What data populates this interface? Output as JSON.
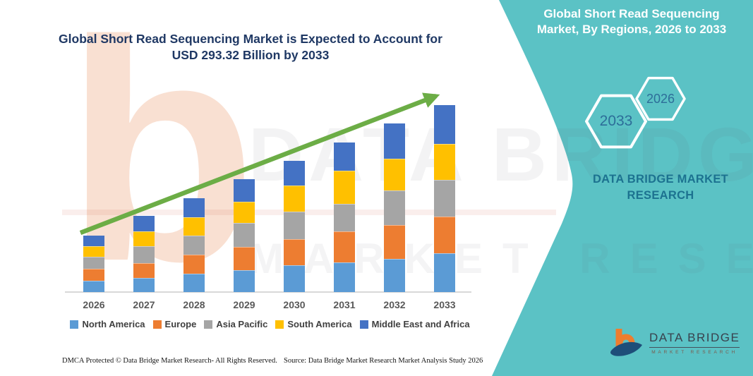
{
  "title": {
    "line1": "Global Short Read Sequencing Market is Expected to Account for",
    "line2": "USD 293.32 Billion by 2033"
  },
  "side_panel": {
    "heading_line1": "Global Short Read Sequencing",
    "heading_line2": "Market, By Regions, 2026 to 2033",
    "hexagon_large_label": "2033",
    "hexagon_small_label": "2026",
    "brand_line1": "DATA BRIDGE MARKET",
    "brand_line2": "RESEARCH"
  },
  "chart_data": {
    "type": "bar",
    "stacked": true,
    "title": "Global Short Read Sequencing Market is Expected to Account for USD 293.32 Billion by 2033",
    "unit": "USD Billion",
    "categories": [
      "2026",
      "2027",
      "2028",
      "2029",
      "2030",
      "2031",
      "2032",
      "2033"
    ],
    "series": [
      {
        "name": "North America",
        "color": "#5B9BD5",
        "values": [
          17.6,
          22.4,
          28.5,
          34.2,
          41.6,
          46.1,
          52.4,
          60.6
        ]
      },
      {
        "name": "Europe",
        "color": "#ED7D31",
        "values": [
          19.4,
          23.2,
          30.7,
          36.4,
          41.6,
          49.4,
          52.4,
          57.7
        ]
      },
      {
        "name": "Asia Pacific",
        "color": "#A5A5A5",
        "values": [
          17.9,
          26.9,
          29.6,
          37.8,
          43.2,
          43.5,
          54.8,
          57.7
        ]
      },
      {
        "name": "South America",
        "color": "#FFC000",
        "values": [
          17.6,
          22.4,
          28.5,
          33.5,
          40.9,
          51.2,
          50.0,
          57.0
        ]
      },
      {
        "name": "Middle East and Africa",
        "color": "#4472C4",
        "values": [
          16.0,
          24.6,
          29.9,
          35.2,
          38.6,
          44.5,
          55.0,
          60.3
        ]
      }
    ],
    "totals": [
      88.5,
      119.5,
      147.2,
      177.1,
      205.9,
      234.7,
      264.6,
      293.32
    ],
    "final_year_value": 293.32,
    "ylim": [
      0,
      300
    ],
    "gridlines": false,
    "y_axis_visible": false,
    "legend_position": "bottom",
    "trend_arrow": {
      "present": true,
      "direction": "up-right",
      "color": "#6CAD46"
    }
  },
  "watermark": {
    "letter": "b",
    "line1": "DATA BRIDGE",
    "line2": "MARKET RESEARCH"
  },
  "logo": {
    "title": "DATA BRIDGE",
    "subtitle": "MARKET RESEARCH"
  },
  "footer": {
    "dmca": "DMCA Protected © Data Bridge Market Research-  All Rights Reserved.",
    "source": "Source: Data Bridge Market Research  Market Analysis Study 2026"
  },
  "theme": {
    "teal_panel": "#5BC2C5",
    "title_text": "#1F3864",
    "panel_heading_text": "#FFFFFF",
    "hexagon_outline": "#FFFFFF",
    "hexagon_year_text": "#2D6E99",
    "panel_brand_text": "#1C7290",
    "arrow_green": "#6CAD46",
    "axis_label_text": "#595959",
    "legend_text": "#404040",
    "logo_orange": "#EE7D2E",
    "logo_navy": "#1E4E79"
  }
}
